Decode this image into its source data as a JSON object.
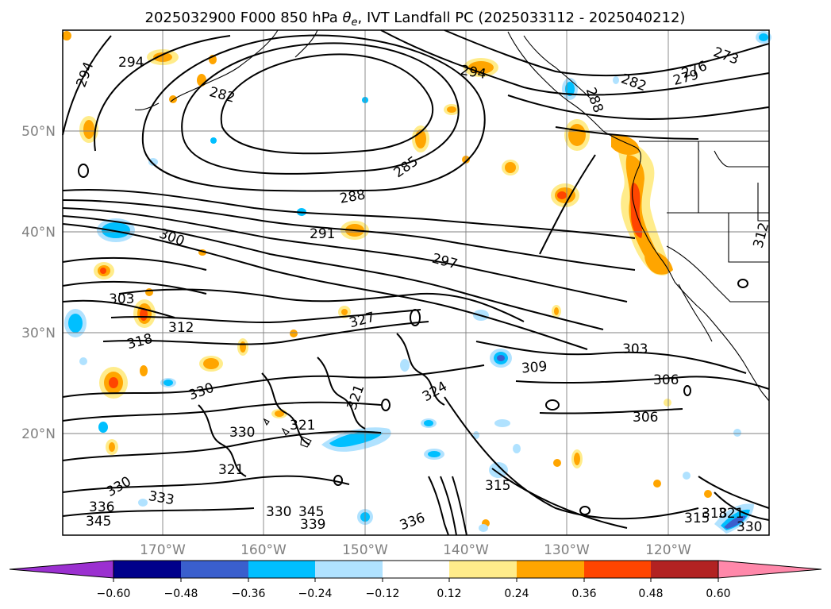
{
  "title_main": "2025032900 F000 850 hPa ",
  "title_theta": "θ",
  "title_sub": "e",
  "title_rest": ", IVT Landfall PC (2025033112 - 2025040212)",
  "lat_labels": [
    "50°N",
    "40°N",
    "30°N",
    "20°N"
  ],
  "lon_labels": [
    "170°W",
    "160°W",
    "150°W",
    "140°W",
    "130°W",
    "120°W"
  ],
  "colorbar": {
    "ticks": [
      "−0.60",
      "−0.48",
      "−0.36",
      "−0.24",
      "−0.12",
      "0.12",
      "0.24",
      "0.36",
      "0.48",
      "0.60"
    ],
    "colors": [
      "#9b30d0",
      "#00008b",
      "#3a5fcd",
      "#00bfff",
      "#b0e2ff",
      "#ffffff",
      "#ffec8b",
      "#ffa500",
      "#ff4500",
      "#b22222",
      "#ff88aa"
    ]
  },
  "contour_labels": [
    "294",
    "294",
    "282",
    "294",
    "285",
    "288",
    "291",
    "300",
    "297",
    "303",
    "312",
    "318",
    "327",
    "303",
    "309",
    "324",
    "330",
    "321",
    "321",
    "330",
    "306",
    "306",
    "321",
    "330",
    "333",
    "336",
    "345",
    "339",
    "345",
    "330",
    "336",
    "315",
    "315",
    "318",
    "321",
    "330",
    "276",
    "273",
    "279",
    "282",
    "288",
    "312"
  ],
  "map": {
    "land_color": "#ffffff",
    "grid_color": "#808080"
  }
}
